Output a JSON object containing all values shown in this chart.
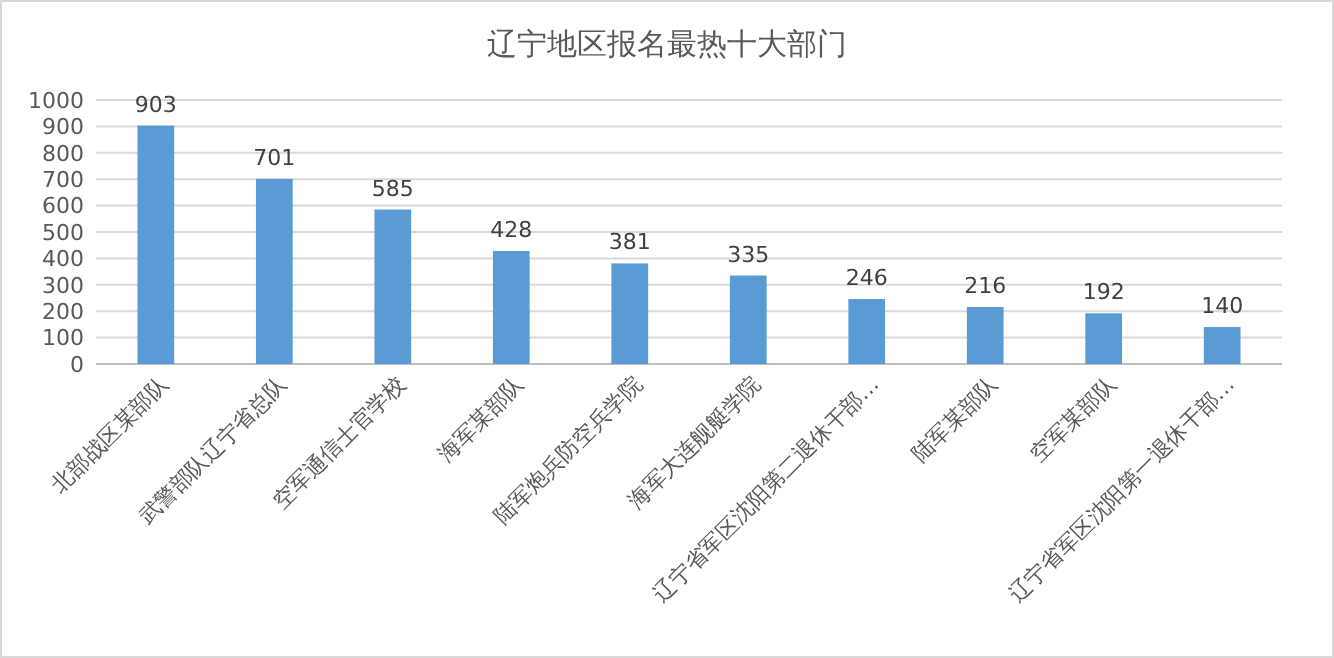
{
  "chart_data": {
    "type": "bar",
    "title": "辽宁地区报名最热十大部门",
    "categories": [
      "北部战区某部队",
      "武警部队辽宁省总队",
      "空军通信士官学校",
      "海军某部队",
      "陆军炮兵防空兵学院",
      "海军大连舰艇学院",
      "辽宁省军区沈阳第二退休干部…",
      "陆军某部队",
      "空军某部队",
      "辽宁省军区沈阳第一退休干部…"
    ],
    "values": [
      903,
      701,
      585,
      428,
      381,
      335,
      246,
      216,
      192,
      140
    ],
    "color": "#5b9bd5",
    "ylim": [
      0,
      1000
    ],
    "yticks": [
      0,
      100,
      200,
      300,
      400,
      500,
      600,
      700,
      800,
      900,
      1000
    ],
    "grid": "y",
    "data_labels": true
  }
}
